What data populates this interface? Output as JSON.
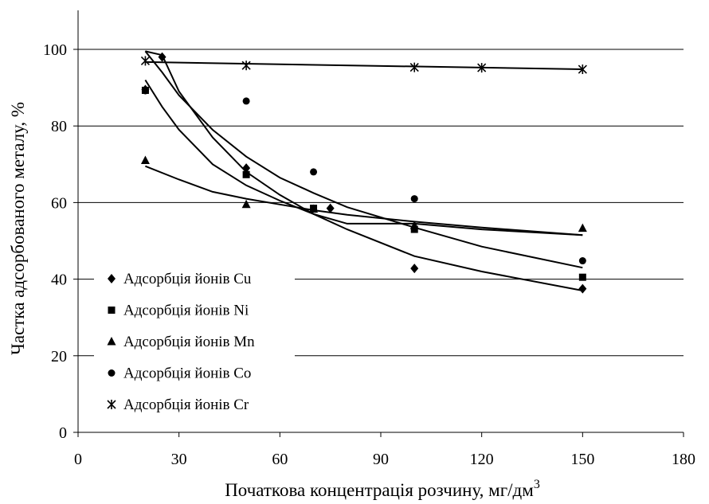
{
  "chart_data": {
    "type": "scatter",
    "xlabel": "Початкова концентрація розчину, мг/дм",
    "xlabel_sup": "3",
    "ylabel": "Частка адсорбованого металу, %",
    "xlim": [
      0,
      180
    ],
    "ylim": [
      0,
      100
    ],
    "x_ticks": [
      0,
      30,
      60,
      90,
      120,
      150,
      180
    ],
    "y_ticks": [
      0,
      20,
      40,
      60,
      80,
      100
    ],
    "grid": "horizontal",
    "legend_position": "lower-left",
    "series": [
      {
        "name": "Адсорбція йонів Cu",
        "marker": "diamond",
        "points": [
          [
            20,
            89.5
          ],
          [
            25,
            98
          ],
          [
            50,
            69
          ],
          [
            75,
            58.5
          ],
          [
            100,
            42.8
          ],
          [
            150,
            37.5
          ]
        ],
        "trend": [
          [
            20,
            99.5
          ],
          [
            25,
            94
          ],
          [
            30,
            88
          ],
          [
            40,
            79
          ],
          [
            50,
            72
          ],
          [
            60,
            66.5
          ],
          [
            70,
            62.5
          ],
          [
            80,
            58.8
          ],
          [
            100,
            53.5
          ],
          [
            120,
            48.5
          ],
          [
            150,
            43
          ]
        ]
      },
      {
        "name": "Адсорбція йонів Ni",
        "marker": "square",
        "points": [
          [
            20,
            89.3
          ],
          [
            50,
            67.3
          ],
          [
            70,
            58.5
          ],
          [
            100,
            53
          ],
          [
            150,
            40.5
          ]
        ],
        "trend": [
          [
            20,
            92
          ],
          [
            25,
            85
          ],
          [
            30,
            79
          ],
          [
            40,
            70
          ],
          [
            50,
            64.5
          ],
          [
            60,
            60.5
          ],
          [
            70,
            57
          ],
          [
            80,
            53
          ],
          [
            100,
            46
          ],
          [
            120,
            42
          ],
          [
            150,
            37
          ]
        ]
      },
      {
        "name": "Адсорбція йонів Mn",
        "marker": "triangle",
        "points": [
          [
            20,
            71
          ],
          [
            50,
            59.5
          ],
          [
            70,
            58.3
          ],
          [
            100,
            54
          ],
          [
            150,
            53.3
          ]
        ],
        "trend": [
          [
            20,
            69.5
          ],
          [
            30,
            66
          ],
          [
            40,
            62.8
          ],
          [
            50,
            61
          ],
          [
            60,
            59.5
          ],
          [
            70,
            58
          ],
          [
            80,
            56.8
          ],
          [
            100,
            55
          ],
          [
            120,
            53.5
          ],
          [
            150,
            51.5
          ]
        ]
      },
      {
        "name": "Адсорбція йонів Co",
        "marker": "circle",
        "points": [
          [
            20,
            89.2
          ],
          [
            50,
            86.5
          ],
          [
            70,
            68
          ],
          [
            100,
            61
          ],
          [
            150,
            44.8
          ]
        ],
        "trend": [
          [
            20,
            99.5
          ],
          [
            25,
            98.5
          ],
          [
            30,
            89
          ],
          [
            40,
            77
          ],
          [
            50,
            68
          ],
          [
            60,
            62
          ],
          [
            70,
            57
          ],
          [
            80,
            54.5
          ],
          [
            100,
            54.5
          ],
          [
            120,
            53
          ],
          [
            150,
            51.5
          ]
        ]
      },
      {
        "name": "Адсорбція йонів Cr",
        "marker": "star",
        "points": [
          [
            20,
            97
          ],
          [
            50,
            95.8
          ],
          [
            100,
            95.3
          ],
          [
            120,
            95.2
          ],
          [
            150,
            94.8
          ]
        ],
        "trend": [
          [
            20,
            96.7
          ],
          [
            150,
            94.8
          ]
        ]
      }
    ]
  }
}
